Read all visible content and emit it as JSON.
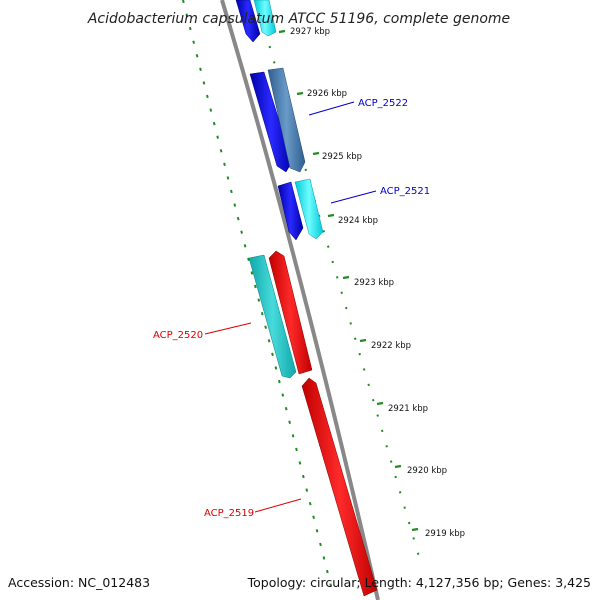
{
  "title": "Acidobacterium capsulatum ATCC 51196, complete genome",
  "accession": "Accession: NC_012483",
  "summary": "Topology: circular; Length: 4,127,356 bp; Genes: 3,425",
  "ticks": [
    {
      "label": "2927 kbp"
    },
    {
      "label": "2926 kbp"
    },
    {
      "label": "2925 kbp"
    },
    {
      "label": "2924 kbp"
    },
    {
      "label": "2923 kbp"
    },
    {
      "label": "2922 kbp"
    },
    {
      "label": "2921 kbp"
    },
    {
      "label": "2920 kbp"
    },
    {
      "label": "2919 kbp"
    }
  ],
  "gene_labels": [
    {
      "name": "ACP_2522",
      "color": "#0000cc"
    },
    {
      "name": "ACP_2521",
      "color": "#0000cc"
    },
    {
      "name": "ACP_2520",
      "color": "#dd0000"
    },
    {
      "name": "ACP_2519",
      "color": "#dd0000"
    }
  ],
  "colors": {
    "forward_cds": "#0000ee",
    "reverse_cds": "#ff0000",
    "trna_like": "#00ffff",
    "steel": "#4a7fb5",
    "teal": "#20c0c0",
    "backbone": "#888888",
    "dotted_ring": "#228b22"
  }
}
